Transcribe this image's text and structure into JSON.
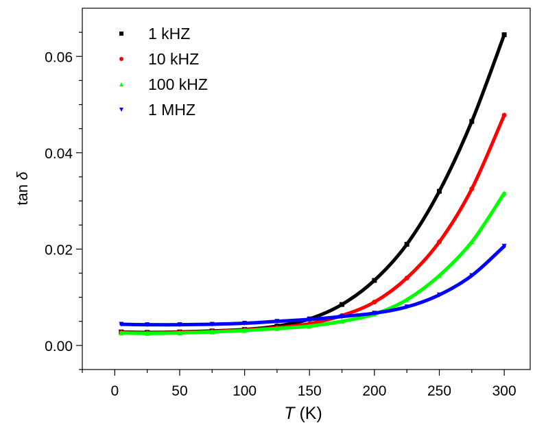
{
  "chart_data": {
    "type": "scatter",
    "xlabel_italic": "T",
    "xlabel_unit": " (K)",
    "ylabel_prefix": "tan ",
    "ylabel_symbol": "δ",
    "xlim": [
      -25,
      320
    ],
    "ylim": [
      -0.005,
      0.07
    ],
    "xticks": [
      "0",
      "50",
      "100",
      "150",
      "200",
      "250",
      "300"
    ],
    "yticks": [
      "0.00",
      "0.02",
      "0.04",
      "0.06"
    ],
    "legend_position": "top-left",
    "series": [
      {
        "name": "1 kHZ",
        "color": "#000000",
        "marker": "square",
        "points": [
          [
            5,
            0.0028
          ],
          [
            25,
            0.0027
          ],
          [
            50,
            0.0028
          ],
          [
            75,
            0.003
          ],
          [
            100,
            0.0033
          ],
          [
            125,
            0.004
          ],
          [
            150,
            0.0055
          ],
          [
            175,
            0.0085
          ],
          [
            200,
            0.0135
          ],
          [
            225,
            0.021
          ],
          [
            250,
            0.032
          ],
          [
            275,
            0.0465
          ],
          [
            300,
            0.0645
          ]
        ]
      },
      {
        "name": "10 kHZ",
        "color": "#ff0000",
        "marker": "circle",
        "points": [
          [
            5,
            0.0027
          ],
          [
            25,
            0.0026
          ],
          [
            50,
            0.0027
          ],
          [
            75,
            0.0029
          ],
          [
            100,
            0.0032
          ],
          [
            125,
            0.0037
          ],
          [
            150,
            0.0045
          ],
          [
            175,
            0.0062
          ],
          [
            200,
            0.009
          ],
          [
            225,
            0.014
          ],
          [
            250,
            0.0215
          ],
          [
            275,
            0.0325
          ],
          [
            300,
            0.0478
          ]
        ]
      },
      {
        "name": "100 kHZ",
        "color": "#00ff00",
        "marker": "triangle-up",
        "points": [
          [
            5,
            0.0026
          ],
          [
            25,
            0.0025
          ],
          [
            50,
            0.0026
          ],
          [
            75,
            0.0028
          ],
          [
            100,
            0.0031
          ],
          [
            125,
            0.0035
          ],
          [
            150,
            0.004
          ],
          [
            175,
            0.005
          ],
          [
            200,
            0.0065
          ],
          [
            225,
            0.0095
          ],
          [
            250,
            0.0145
          ],
          [
            275,
            0.0215
          ],
          [
            300,
            0.0316
          ]
        ]
      },
      {
        "name": "1 MHZ",
        "color": "#0000ff",
        "marker": "triangle-down",
        "points": [
          [
            5,
            0.0044
          ],
          [
            25,
            0.0043
          ],
          [
            50,
            0.0043
          ],
          [
            75,
            0.0044
          ],
          [
            100,
            0.0046
          ],
          [
            125,
            0.005
          ],
          [
            150,
            0.0054
          ],
          [
            175,
            0.006
          ],
          [
            200,
            0.0067
          ],
          [
            225,
            0.008
          ],
          [
            250,
            0.0105
          ],
          [
            275,
            0.0145
          ],
          [
            300,
            0.0206
          ]
        ]
      }
    ]
  }
}
